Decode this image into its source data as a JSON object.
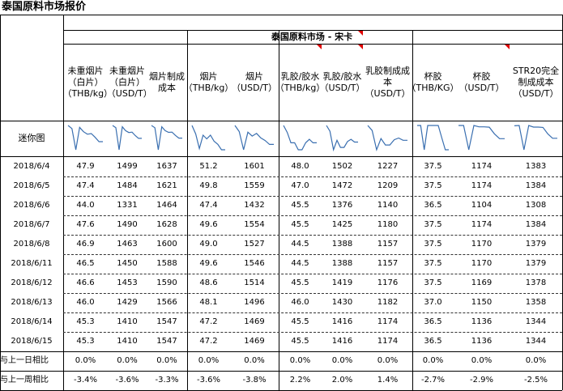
{
  "page_title": "泰国原料市场报价",
  "market_title": "泰国原料市场 - 宋卡",
  "mini_label": "迷你图",
  "columns": [
    {
      "key": "c1",
      "label": "未重烟片（白片）（THB/kg）"
    },
    {
      "key": "c2",
      "label": "未重烟片（白片）（USD/T）"
    },
    {
      "key": "c3",
      "label": "烟片制成成本"
    },
    {
      "key": "c4",
      "label": "烟片（THB/kg）"
    },
    {
      "key": "c5",
      "label": "烟片（USD/T）"
    },
    {
      "key": "c6",
      "label": "乳胶/胶水（THB/kg）"
    },
    {
      "key": "c7",
      "label": "乳胶/胶水（USD/T）"
    },
    {
      "key": "c8",
      "label": "乳胶制成成本（USD/T）"
    },
    {
      "key": "c9",
      "label": "杯胶（THB/KG）"
    },
    {
      "key": "c10",
      "label": "杯胶（USD/T）"
    },
    {
      "key": "c11",
      "label": "STR20完全制成成本（USD/T）"
    }
  ],
  "rows": [
    {
      "date": "2018/6/4",
      "values": [
        "47.9",
        "1499",
        "1637",
        "51.2",
        "1601",
        "48.0",
        "1502",
        "1227",
        "37.5",
        "1174",
        "1383"
      ]
    },
    {
      "date": "2018/6/5",
      "values": [
        "47.4",
        "1484",
        "1621",
        "49.8",
        "1559",
        "47.0",
        "1472",
        "1209",
        "37.5",
        "1174",
        "1384"
      ]
    },
    {
      "date": "2018/6/6",
      "values": [
        "44.0",
        "1331",
        "1464",
        "47.4",
        "1432",
        "45.5",
        "1376",
        "1140",
        "36.5",
        "1104",
        "1308"
      ]
    },
    {
      "date": "2018/6/7",
      "values": [
        "47.6",
        "1490",
        "1628",
        "49.6",
        "1554",
        "45.5",
        "1425",
        "1180",
        "37.5",
        "1174",
        "1384"
      ]
    },
    {
      "date": "2018/6/8",
      "values": [
        "46.9",
        "1463",
        "1600",
        "49.0",
        "1527",
        "44.5",
        "1388",
        "1157",
        "37.5",
        "1170",
        "1379"
      ]
    },
    {
      "date": "2018/6/11",
      "values": [
        "46.5",
        "1450",
        "1588",
        "49.6",
        "1546",
        "44.5",
        "1388",
        "1157",
        "37.5",
        "1170",
        "1379"
      ]
    },
    {
      "date": "2018/6/12",
      "values": [
        "46.6",
        "1453",
        "1590",
        "48.6",
        "1514",
        "45.5",
        "1419",
        "1176",
        "37.5",
        "1169",
        "1378"
      ]
    },
    {
      "date": "2018/6/13",
      "values": [
        "46.0",
        "1429",
        "1566",
        "48.1",
        "1496",
        "46.0",
        "1430",
        "1182",
        "37.0",
        "1150",
        "1358"
      ]
    },
    {
      "date": "2018/6/14",
      "values": [
        "45.3",
        "1410",
        "1547",
        "47.2",
        "1469",
        "45.5",
        "1416",
        "1174",
        "36.5",
        "1136",
        "1344"
      ]
    },
    {
      "date": "2018/6/15",
      "values": [
        "45.3",
        "1410",
        "1547",
        "47.2",
        "1469",
        "45.5",
        "1416",
        "1174",
        "36.5",
        "1136",
        "1344"
      ]
    }
  ],
  "summary": [
    {
      "label": "与上一日相比",
      "values": [
        "0.0%",
        "0.0%",
        "0.0%",
        "0.0%",
        "0.0%",
        "0.0%",
        "0.0%",
        "0.0%",
        "0.0%",
        "0.0%",
        "0.0%"
      ]
    },
    {
      "label": "与上一周相比",
      "values": [
        "-3.4%",
        "-3.6%",
        "-3.3%",
        "-3.6%",
        "-3.8%",
        "2.2%",
        "2.0%",
        "1.4%",
        "-2.7%",
        "-2.9%",
        "-2.5%"
      ]
    }
  ]
}
